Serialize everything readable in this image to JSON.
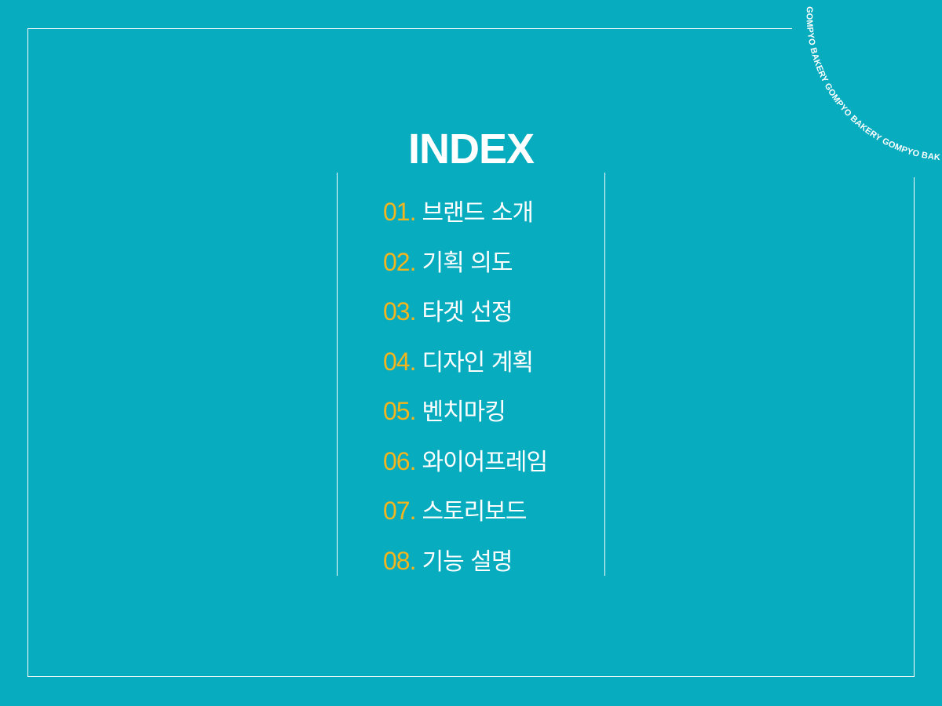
{
  "title": "INDEX",
  "stamp_text": "GOMPYO BAKERY GOMPYO BAKERY GOMPYO BAKERY",
  "colors": {
    "background": "#07acbf",
    "number": "#f2b51f",
    "text": "#ffffff"
  },
  "items": [
    {
      "number": "01.",
      "label": "브랜드 소개"
    },
    {
      "number": "02.",
      "label": "기획 의도"
    },
    {
      "number": "03.",
      "label": "타겟 선정"
    },
    {
      "number": "04.",
      "label": "디자인 계획"
    },
    {
      "number": "05.",
      "label": "벤치마킹"
    },
    {
      "number": "06.",
      "label": "와이어프레임"
    },
    {
      "number": "07.",
      "label": "스토리보드"
    },
    {
      "number": "08.",
      "label": "기능 설명"
    }
  ]
}
